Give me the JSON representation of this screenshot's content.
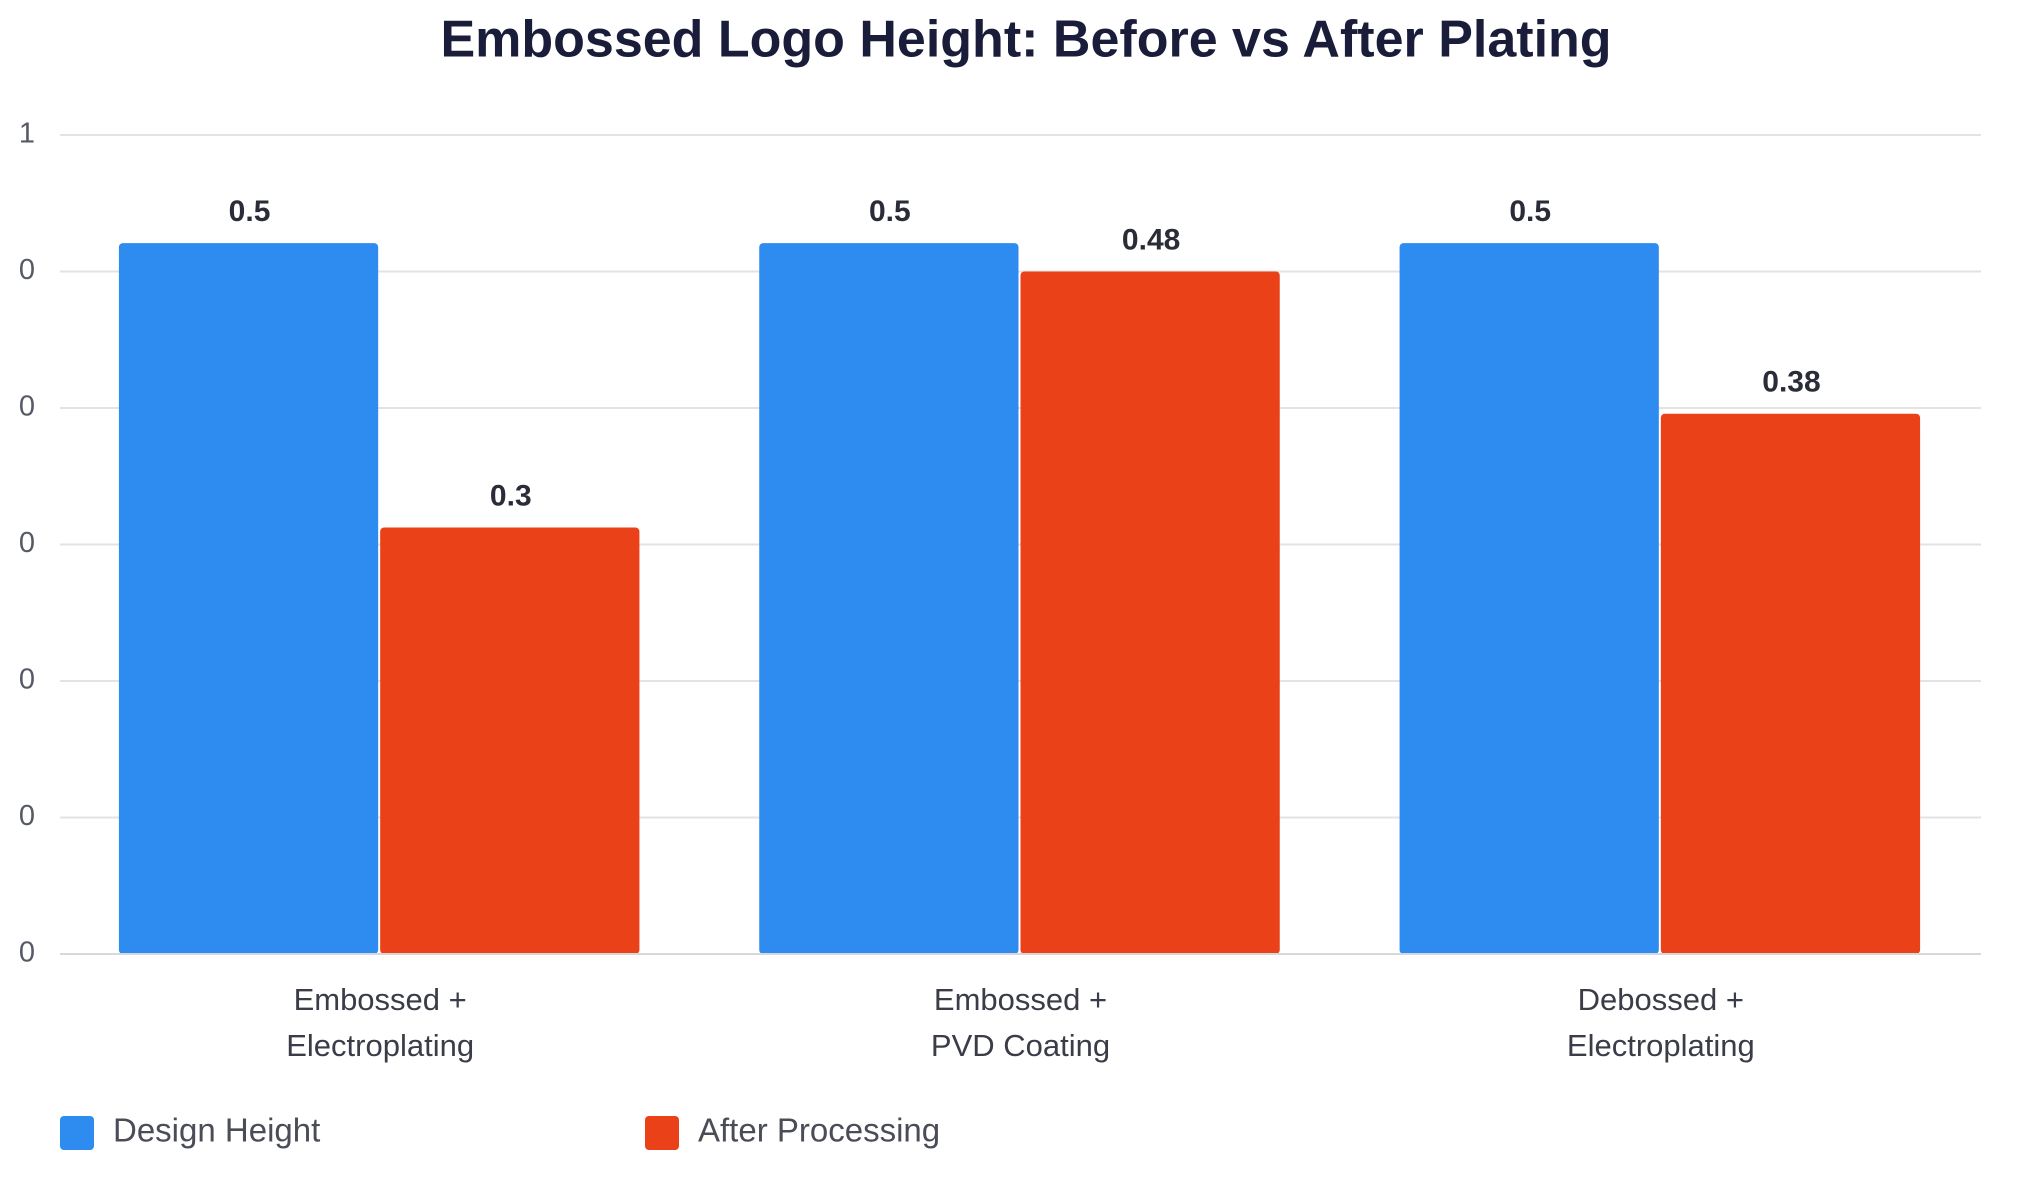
{
  "chart_data": {
    "type": "bar",
    "title": "Embossed Logo Height: Before vs After Plating",
    "categories": [
      [
        "Embossed +",
        "Electroplating"
      ],
      [
        "Embossed +",
        "PVD Coating"
      ],
      [
        "Debossed +",
        "Electroplating"
      ]
    ],
    "series": [
      {
        "name": "Design Height",
        "color": "#2e8bef",
        "values": [
          0.5,
          0.5,
          0.5
        ]
      },
      {
        "name": "After Processing",
        "color": "#ea4118",
        "values": [
          0.3,
          0.48,
          0.38
        ]
      }
    ],
    "ylim": [
      0,
      0.576
    ],
    "yticks": [
      {
        "value": 0,
        "label": "0"
      },
      {
        "value": 0.096,
        "label": "0"
      },
      {
        "value": 0.192,
        "label": "0"
      },
      {
        "value": 0.288,
        "label": "0"
      },
      {
        "value": 0.384,
        "label": "0"
      },
      {
        "value": 0.48,
        "label": "0"
      },
      {
        "value": 0.576,
        "label": "1"
      }
    ],
    "grid": true,
    "legend": "bottom-left"
  }
}
